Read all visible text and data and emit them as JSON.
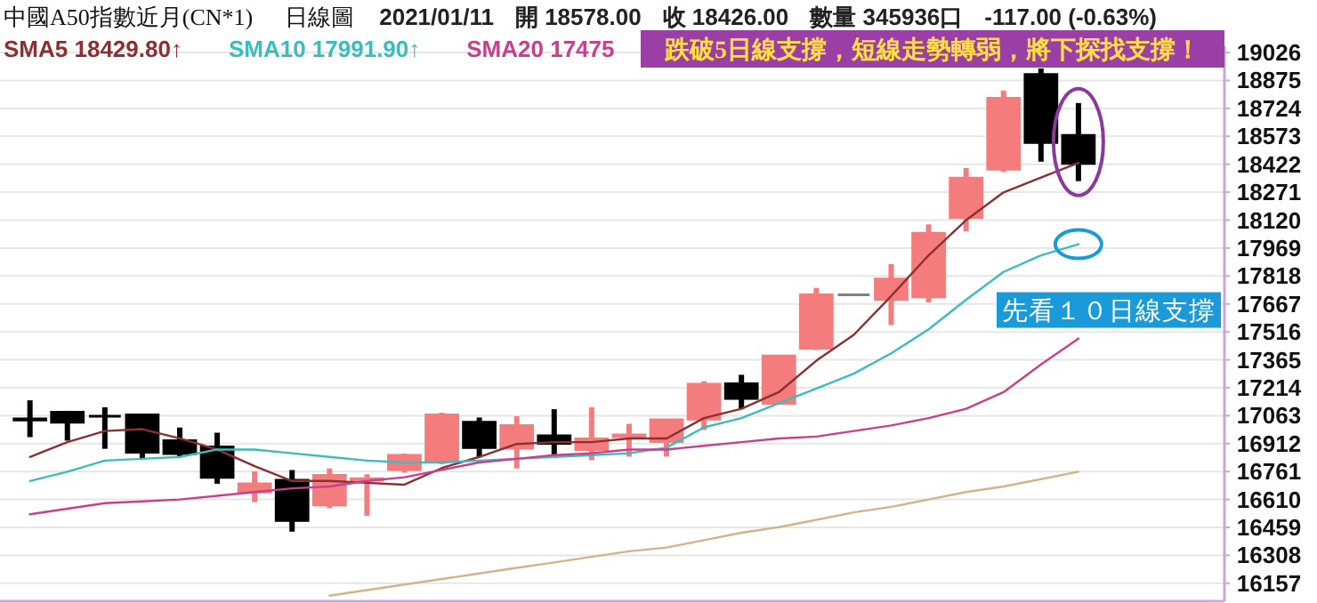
{
  "chart_data": {
    "type": "candlestick",
    "title": "中國A50指數近月(CN*1)",
    "subtitle": "日線圖",
    "annotations": [
      "2021/01/11",
      "開 18578.00",
      "收 18426.00",
      "數量 345936口",
      "-117.00 (-0.63%)",
      "跌破5日線支撐，短線走勢轉弱，將下探找支撐！",
      {
        "text": "先看１０日線支撐",
        "y": 17990
      }
    ],
    "categories": [
      null,
      null,
      null,
      null,
      null,
      null,
      null,
      null,
      null,
      null,
      null,
      null,
      null,
      null,
      null,
      null,
      null,
      null,
      null,
      null,
      null,
      null,
      null,
      null,
      null,
      null,
      null,
      null,
      null
    ],
    "series": [
      {
        "colors": [
          "#000000",
          "#000000",
          "#000000",
          "#000000",
          "#000000",
          "#000000",
          "#f47c7c",
          "#000000",
          "#f47c7c",
          "#f47c7c",
          "#f47c7c",
          "#f47c7c",
          "#000000",
          "#f47c7c",
          "#000000",
          "#f47c7c",
          "#f47c7c",
          "#f47c7c",
          "#f47c7c",
          "#000000",
          "#f47c7c",
          "#f47c7c",
          "#808080",
          "#f47c7c",
          "#f47c7c",
          "#f47c7c",
          "#f47c7c",
          "#000000",
          "#000000"
        ],
        "ohlc": [
          [
            17045,
            17146,
            16947,
            17040
          ],
          [
            17082,
            17089,
            16928,
            17028
          ],
          [
            17060,
            17108,
            16884,
            17060
          ],
          [
            17067,
            17070,
            16826,
            16865
          ],
          [
            16928,
            16999,
            16838,
            16858
          ],
          [
            16894,
            16971,
            16695,
            16730
          ],
          [
            16650,
            16762,
            16596,
            16695
          ],
          [
            16714,
            16769,
            16436,
            16496
          ],
          [
            16580,
            16778,
            16563,
            16740
          ],
          [
            16715,
            16746,
            16522,
            16722
          ],
          [
            16772,
            16858,
            16755,
            16849
          ],
          [
            16817,
            17079,
            16801,
            17067
          ],
          [
            17028,
            17053,
            16838,
            16890
          ],
          [
            16887,
            17060,
            16778,
            17009
          ],
          [
            16954,
            17098,
            16835,
            16913
          ],
          [
            16880,
            17108,
            16823,
            16938
          ],
          [
            16950,
            17019,
            16842,
            16959
          ],
          [
            16923,
            17045,
            16842,
            17041
          ],
          [
            17044,
            17249,
            16986,
            17233
          ],
          [
            17236,
            17284,
            17098,
            17156
          ],
          [
            17130,
            17390,
            17128,
            17386
          ],
          [
            17428,
            17754,
            17418,
            17716
          ],
          [
            17716,
            17716,
            17716,
            17716
          ],
          [
            17691,
            17883,
            17553,
            17802
          ],
          [
            17706,
            18097,
            17675,
            18049
          ],
          [
            18133,
            18402,
            18059,
            18347
          ],
          [
            18395,
            18820,
            18380,
            18779
          ],
          [
            18907,
            18940,
            18436,
            18539
          ],
          [
            18578,
            18753,
            18331,
            18426
          ]
        ]
      },
      {
        "type": "line",
        "name": "SMA5 18429.80↑",
        "color": "#8b3030",
        "values": [
          16840,
          16920,
          16980,
          16990,
          16940,
          16880,
          16790,
          16710,
          16710,
          16700,
          16690,
          16780,
          16840,
          16910,
          16920,
          16920,
          16940,
          16940,
          17050,
          17100,
          17190,
          17360,
          17500,
          17710,
          17930,
          18120,
          18270,
          18350,
          18430
        ]
      },
      {
        "type": "line",
        "name": "SMA10 17991.90↑",
        "color": "#3cbcbc",
        "values": [
          16710,
          16760,
          16820,
          16830,
          16840,
          16880,
          16880,
          16860,
          16840,
          16820,
          16810,
          16810,
          16820,
          16830,
          16840,
          16850,
          16860,
          16890,
          17000,
          17050,
          17130,
          17210,
          17290,
          17400,
          17530,
          17690,
          17840,
          17930,
          17990
        ]
      },
      {
        "type": "line",
        "name": "SMA20 17475",
        "color": "#c8408c",
        "values": [
          16530,
          16560,
          16590,
          16600,
          16610,
          16630,
          16650,
          16670,
          16680,
          16710,
          16730,
          16770,
          16810,
          16830,
          16850,
          16860,
          16880,
          16880,
          16900,
          16920,
          16940,
          16950,
          16980,
          17010,
          17050,
          17100,
          17190,
          17340,
          17480
        ]
      },
      {
        "type": "line",
        "color": "#d2b48c",
        "values": [
          null,
          null,
          null,
          null,
          null,
          null,
          null,
          null,
          16090,
          16120,
          16150,
          16180,
          16210,
          16240,
          16270,
          16300,
          16330,
          16350,
          16390,
          16430,
          16460,
          16500,
          16540,
          16570,
          16610,
          16650,
          16680,
          16720,
          16760
        ]
      }
    ],
    "ylim": [
      16060,
      19060
    ],
    "yticks": [
      16157,
      16308,
      16459,
      16610,
      16761,
      16912,
      17063,
      17214,
      17365,
      17516,
      17667,
      17818,
      17969,
      18120,
      18271,
      18422,
      18573,
      18724,
      18875,
      19026
    ],
    "grid": "y",
    "legend": "top left"
  }
}
